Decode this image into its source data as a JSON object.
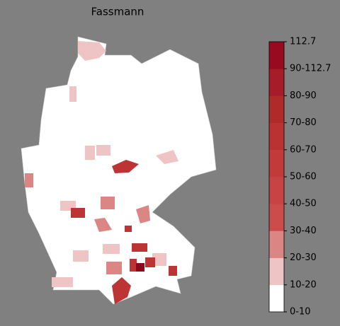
{
  "title": "Fassmann",
  "colorbar": {
    "labels": [
      "0-10",
      "10-20",
      "20-30",
      "30-40",
      "40-50",
      "50-60",
      "60-70",
      "70-80",
      "80-90",
      "90-112.7",
      "112.7"
    ],
    "colors": [
      "#ffffff",
      "#eec4c4",
      "#db8585",
      "#cc4c4c",
      "#c84444",
      "#c23a3a",
      "#ba3232",
      "#b02a2a",
      "#a61c28",
      "#980a20"
    ]
  }
}
